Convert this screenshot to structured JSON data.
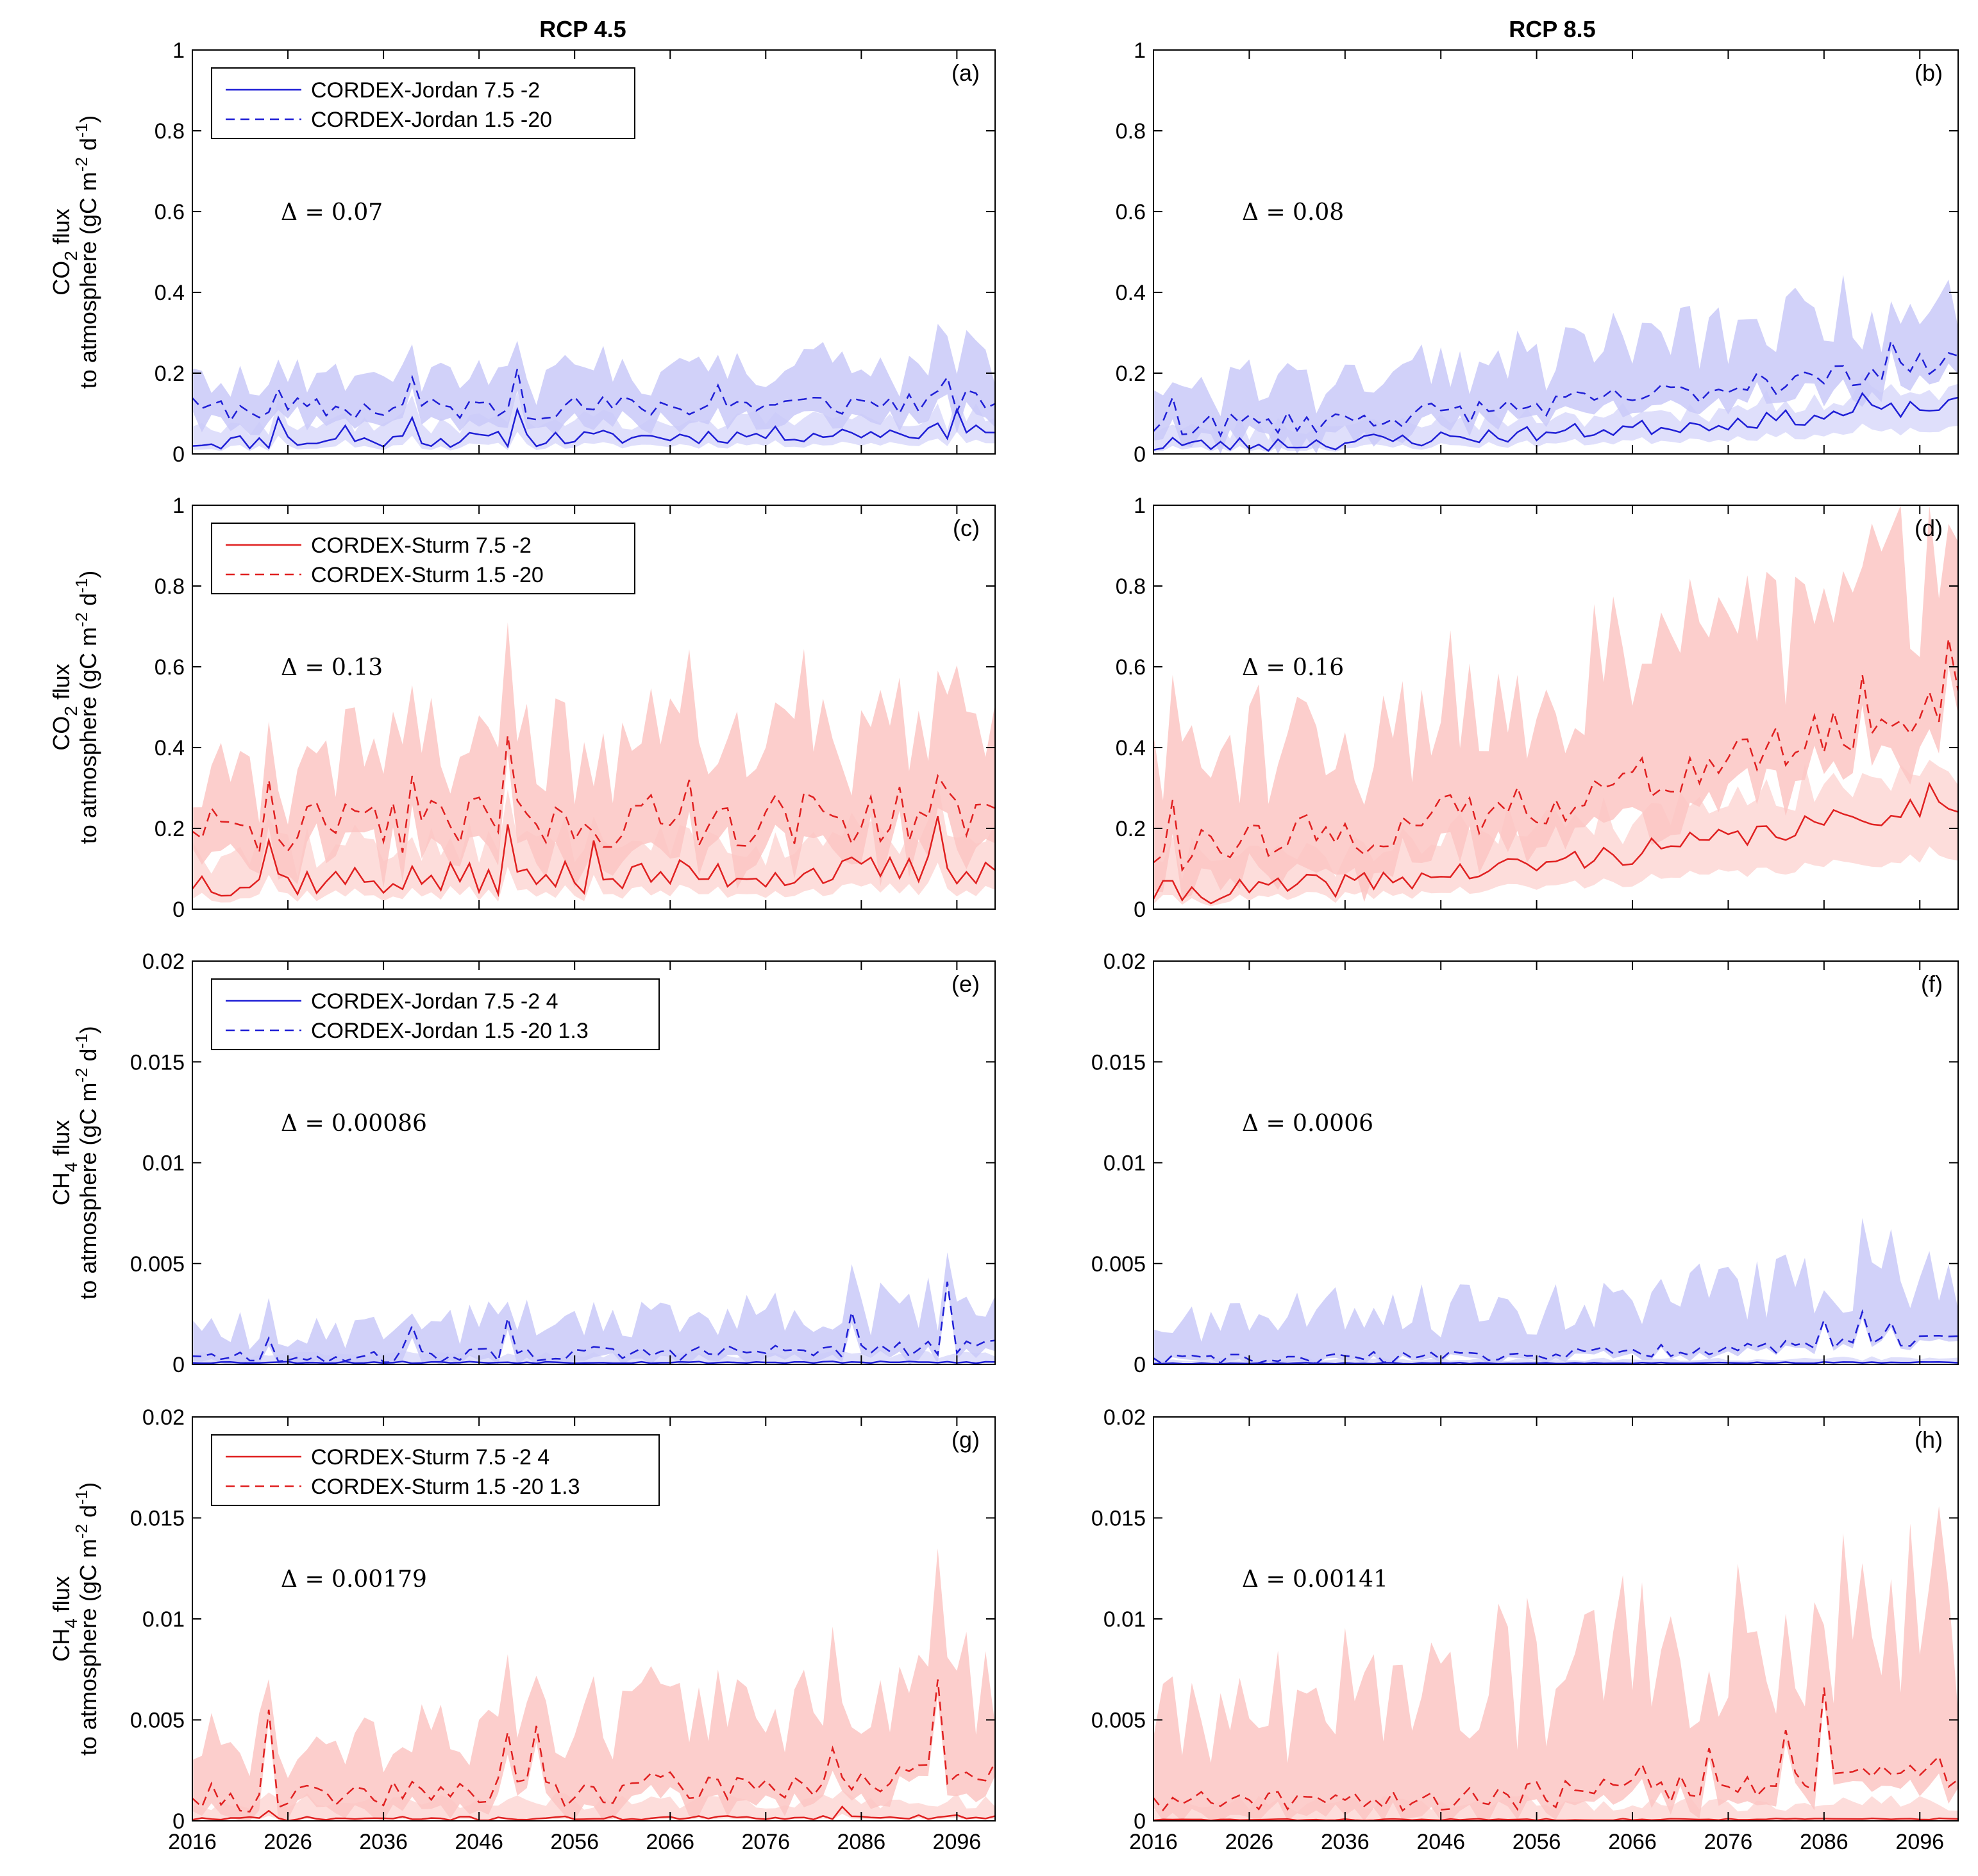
{
  "column_titles": [
    "RCP 4.5",
    "RCP 8.5"
  ],
  "row_ylabels": [
    {
      "line1_pre": "CO",
      "line1_sub": "2",
      "line1_post": " flux",
      "line2_pre": "to atmosphere (gC m",
      "sup1": "-2",
      "mid": " d",
      "sup2": "-1",
      "line2_post": ")"
    },
    {
      "line1_pre": "CO",
      "line1_sub": "2",
      "line1_post": " flux",
      "line2_pre": "to atmosphere (gC m",
      "sup1": "-2",
      "mid": " d",
      "sup2": "-1",
      "line2_post": ")"
    },
    {
      "line1_pre": "CH",
      "line1_sub": "4",
      "line1_post": " flux",
      "line2_pre": "to atmosphere (gC m",
      "sup1": "-2",
      "mid": " d",
      "sup2": "-1",
      "line2_post": ")"
    },
    {
      "line1_pre": "CH",
      "line1_sub": "4",
      "line1_post": " flux",
      "line2_pre": "to atmosphere (gC m",
      "sup1": "-2",
      "mid": " d",
      "sup2": "-1",
      "line2_post": ")"
    }
  ],
  "colors": {
    "blue_line": "#1f1fd6",
    "blue_band": "#c9c9f8",
    "red_line": "#e02020",
    "red_band": "#fbc6c3"
  },
  "chart_data": [
    {
      "panel": "(a)",
      "type": "line",
      "scenario": "RCP 4.5",
      "color": "blue",
      "delta": "Δ = 0.07",
      "legend": [
        "CORDEX-Jordan 7.5 -2",
        "CORDEX-Jordan 1.5 -20"
      ],
      "ylim": [
        0,
        1
      ],
      "yticks": [
        "0",
        "0.2",
        "0.4",
        "0.6",
        "0.8",
        "1"
      ],
      "xlim": [
        2016,
        2100
      ],
      "show_xticks": false,
      "gen": {
        "seed": 11,
        "solid": {
          "mean0": 0.03,
          "mean1": 0.06,
          "amp": 0.02,
          "spikes": [
            [
              2025,
              0.09
            ],
            [
              2032,
              0.07
            ],
            [
              2039,
              0.09
            ],
            [
              2050,
              0.11
            ],
            [
              2096,
              0.11
            ]
          ]
        },
        "dashed": {
          "mean0": 0.11,
          "mean1": 0.13,
          "amp": 0.03,
          "spikes": [
            [
              2025,
              0.16
            ],
            [
              2039,
              0.19
            ],
            [
              2050,
              0.21
            ],
            [
              2071,
              0.17
            ],
            [
              2095,
              0.19
            ]
          ]
        },
        "band_low": 0.04,
        "band_high": 0.06
      }
    },
    {
      "panel": "(b)",
      "type": "line",
      "scenario": "RCP 8.5",
      "color": "blue",
      "delta": "Δ = 0.08",
      "legend": null,
      "ylim": [
        0,
        1
      ],
      "yticks": [
        "0",
        "0.2",
        "0.4",
        "0.6",
        "0.8",
        "1"
      ],
      "xlim": [
        2016,
        2100
      ],
      "show_xticks": false,
      "gen": {
        "seed": 23,
        "solid": {
          "mean0": 0.02,
          "mean1": 0.12,
          "amp": 0.02,
          "spikes": [
            [
              2018,
              0.04
            ],
            [
              2090,
              0.15
            ]
          ]
        },
        "dashed": {
          "mean0": 0.07,
          "mean1": 0.23,
          "amp": 0.03,
          "spikes": [
            [
              2018,
              0.14
            ],
            [
              2079,
              0.2
            ],
            [
              2093,
              0.28
            ],
            [
              2099,
              0.25
            ]
          ]
        },
        "band_low": 0.04,
        "band_high": 0.09
      }
    },
    {
      "panel": "(c)",
      "type": "line",
      "scenario": "RCP 4.5",
      "color": "red",
      "delta": "Δ = 0.13",
      "legend": [
        "CORDEX-Sturm 7.5 -2",
        "CORDEX-Sturm 1.5 -20"
      ],
      "ylim": [
        0,
        1
      ],
      "yticks": [
        "0",
        "0.2",
        "0.4",
        "0.6",
        "0.8",
        "1"
      ],
      "xlim": [
        2016,
        2100
      ],
      "show_xticks": false,
      "gen": {
        "seed": 37,
        "solid": {
          "mean0": 0.07,
          "mean1": 0.1,
          "amp": 0.04,
          "spikes": [
            [
              2024,
              0.17
            ],
            [
              2049,
              0.21
            ],
            [
              2058,
              0.17
            ],
            [
              2094,
              0.23
            ]
          ]
        },
        "dashed": {
          "mean0": 0.2,
          "mean1": 0.24,
          "amp": 0.07,
          "spikes": [
            [
              2024,
              0.32
            ],
            [
              2039,
              0.33
            ],
            [
              2049,
              0.43
            ],
            [
              2068,
              0.32
            ],
            [
              2094,
              0.33
            ],
            [
              2099,
              0.26
            ]
          ]
        },
        "band_low": 0.08,
        "band_high": 0.14
      }
    },
    {
      "panel": "(d)",
      "type": "line",
      "scenario": "RCP 8.5",
      "color": "red",
      "delta": "Δ = 0.16",
      "legend": null,
      "ylim": [
        0,
        1
      ],
      "yticks": [
        "0",
        "0.2",
        "0.4",
        "0.6",
        "0.8",
        "1"
      ],
      "xlim": [
        2016,
        2100
      ],
      "show_xticks": false,
      "gen": {
        "seed": 41,
        "solid": {
          "mean0": 0.04,
          "mean1": 0.27,
          "amp": 0.03,
          "spikes": [
            [
              2018,
              0.07
            ],
            [
              2097,
              0.31
            ]
          ]
        },
        "dashed": {
          "mean0": 0.15,
          "mean1": 0.52,
          "amp": 0.06,
          "spikes": [
            [
              2018,
              0.27
            ],
            [
              2090,
              0.58
            ],
            [
              2099,
              0.67
            ]
          ]
        },
        "band_low": 0.09,
        "band_high": 0.2
      }
    },
    {
      "panel": "(e)",
      "type": "line",
      "scenario": "RCP 4.5",
      "color": "blue",
      "delta": "Δ = 0.00086",
      "legend": [
        "CORDEX-Jordan 7.5 -2 4",
        "CORDEX-Jordan 1.5 -20 1.3"
      ],
      "ylim": [
        0,
        0.02
      ],
      "yticks": [
        "0",
        "0.005",
        "0.01",
        "0.015",
        "0.02"
      ],
      "xlim": [
        2016,
        2100
      ],
      "show_xticks": false,
      "gen": {
        "seed": 53,
        "solid": {
          "mean0": 0.0001,
          "mean1": 0.0001,
          "amp": 5e-05,
          "spikes": []
        },
        "dashed": {
          "mean0": 0.0004,
          "mean1": 0.0008,
          "amp": 0.0004,
          "spikes": [
            [
              2024,
              0.0013
            ],
            [
              2039,
              0.0019
            ],
            [
              2049,
              0.0023
            ],
            [
              2085,
              0.0026
            ],
            [
              2095,
              0.0041
            ]
          ]
        },
        "band_low": 0.0004,
        "band_high": 0.0012
      }
    },
    {
      "panel": "(f)",
      "type": "line",
      "scenario": "RCP 8.5",
      "color": "blue",
      "delta": "Δ = 0.0006",
      "legend": null,
      "ylim": [
        0,
        0.02
      ],
      "yticks": [
        "0",
        "0.005",
        "0.01",
        "0.015",
        "0.02"
      ],
      "xlim": [
        2016,
        2100
      ],
      "show_xticks": false,
      "gen": {
        "seed": 67,
        "solid": {
          "mean0": 5e-05,
          "mean1": 0.0001,
          "amp": 3e-05,
          "spikes": []
        },
        "dashed": {
          "mean0": 0.0002,
          "mean1": 0.0012,
          "amp": 0.0003,
          "spikes": [
            [
              2086,
              0.0022
            ],
            [
              2090,
              0.0026
            ],
            [
              2093,
              0.0021
            ]
          ]
        },
        "band_low": 0.0002,
        "band_high": 0.0018
      }
    },
    {
      "panel": "(g)",
      "type": "line",
      "scenario": "RCP 4.5",
      "color": "red",
      "delta": "Δ = 0.00179",
      "legend": [
        "CORDEX-Sturm 7.5 -2 4",
        "CORDEX-Sturm 1.5 -20 1.3"
      ],
      "ylim": [
        0,
        0.02
      ],
      "yticks": [
        "0",
        "0.005",
        "0.01",
        "0.015",
        "0.02"
      ],
      "xlim": [
        2016,
        2100
      ],
      "show_xticks": true,
      "xticks": [
        "2016",
        "2026",
        "2036",
        "2046",
        "2056",
        "2066",
        "2076",
        "2086",
        "2096"
      ],
      "gen": {
        "seed": 71,
        "solid": {
          "mean0": 0.0001,
          "mean1": 0.0002,
          "amp": 0.0001,
          "spikes": [
            [
              2024,
              0.0005
            ],
            [
              2084,
              0.0007
            ]
          ]
        },
        "dashed": {
          "mean0": 0.0012,
          "mean1": 0.0022,
          "amp": 0.0008,
          "spikes": [
            [
              2024,
              0.0055
            ],
            [
              2049,
              0.0044
            ],
            [
              2052,
              0.0047
            ],
            [
              2083,
              0.0036
            ],
            [
              2094,
              0.007
            ]
          ]
        },
        "band_low": 0.0008,
        "band_high": 0.0025
      }
    },
    {
      "panel": "(h)",
      "type": "line",
      "scenario": "RCP 8.5",
      "color": "red",
      "delta": "Δ = 0.00141",
      "legend": null,
      "ylim": [
        0,
        0.02
      ],
      "yticks": [
        "0",
        "0.005",
        "0.01",
        "0.015",
        "0.02"
      ],
      "xlim": [
        2016,
        2100
      ],
      "show_xticks": true,
      "xticks": [
        "2016",
        "2026",
        "2036",
        "2046",
        "2056",
        "2066",
        "2076",
        "2086",
        "2096"
      ],
      "gen": {
        "seed": 83,
        "solid": {
          "mean0": 5e-05,
          "mean1": 0.0001,
          "amp": 4e-05,
          "spikes": []
        },
        "dashed": {
          "mean0": 0.0008,
          "mean1": 0.0024,
          "amp": 0.0007,
          "spikes": [
            [
              2067,
              0.0028
            ],
            [
              2074,
              0.0036
            ],
            [
              2082,
              0.0045
            ],
            [
              2086,
              0.0066
            ],
            [
              2098,
              0.0032
            ]
          ]
        },
        "band_low": 0.0008,
        "band_high": 0.0045
      }
    }
  ]
}
